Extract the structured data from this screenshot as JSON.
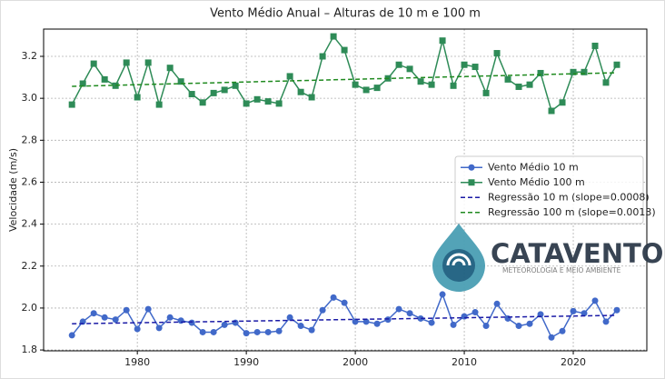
{
  "chart_data": {
    "type": "line",
    "title": "Vento Médio Anual – Alturas de 10 m e 100 m",
    "y_label": "Velocidade (m/s)",
    "xlim": [
      1971.4,
      2026.75
    ],
    "xticks": [
      1980,
      1990,
      2000,
      2010,
      2020
    ],
    "ylim": [
      1.796,
      3.33
    ],
    "yticks": [
      1.8,
      {
        "value": 2,
        "label": "2.0"
      },
      2.2,
      2.4,
      2.6,
      2.8,
      {
        "value": 3,
        "label": "3.0"
      },
      3.2
    ],
    "grid": true,
    "legend": "center right",
    "series": [
      {
        "name": "Vento Médio 10 m",
        "color": "#4169c9",
        "marker": "circle",
        "dashed": false,
        "x": [
          1974,
          1975,
          1976,
          1977,
          1978,
          1979,
          1980,
          1981,
          1982,
          1983,
          1984,
          1985,
          1986,
          1987,
          1988,
          1989,
          1990,
          1991,
          1992,
          1993,
          1994,
          1995,
          1996,
          1997,
          1998,
          1999,
          2000,
          2001,
          2002,
          2003,
          2004,
          2005,
          2006,
          2007,
          2008,
          2009,
          2010,
          2011,
          2012,
          2013,
          2014,
          2015,
          2016,
          2017,
          2018,
          2019,
          2020,
          2021,
          2022,
          2023,
          2024
        ],
        "values": [
          1.87,
          1.935,
          1.975,
          1.955,
          1.945,
          1.99,
          1.9,
          1.995,
          1.905,
          1.955,
          1.94,
          1.93,
          1.885,
          1.885,
          1.92,
          1.93,
          1.88,
          1.885,
          1.885,
          1.89,
          1.955,
          1.915,
          1.895,
          1.99,
          2.05,
          2.025,
          1.935,
          1.935,
          1.925,
          1.945,
          1.995,
          1.975,
          1.95,
          1.93,
          2.065,
          1.92,
          1.96,
          1.98,
          1.915,
          2.02,
          1.95,
          1.915,
          1.925,
          1.97,
          1.86,
          1.89,
          1.985,
          1.975,
          2.035,
          1.935,
          1.99
        ]
      },
      {
        "name": "Vento Médio 100 m",
        "color": "#2e8b57",
        "marker": "square",
        "dashed": false,
        "x": [
          1974,
          1975,
          1976,
          1977,
          1978,
          1979,
          1980,
          1981,
          1982,
          1983,
          1984,
          1985,
          1986,
          1987,
          1988,
          1989,
          1990,
          1991,
          1992,
          1993,
          1994,
          1995,
          1996,
          1997,
          1998,
          1999,
          2000,
          2001,
          2002,
          2003,
          2004,
          2005,
          2006,
          2007,
          2008,
          2009,
          2010,
          2011,
          2012,
          2013,
          2014,
          2015,
          2016,
          2017,
          2018,
          2019,
          2020,
          2021,
          2022,
          2023,
          2024
        ],
        "values": [
          2.97,
          3.07,
          3.165,
          3.09,
          3.06,
          3.17,
          3.005,
          3.17,
          2.97,
          3.145,
          3.08,
          3.02,
          2.98,
          3.025,
          3.04,
          3.06,
          2.975,
          2.995,
          2.985,
          2.975,
          3.105,
          3.03,
          3.005,
          3.2,
          3.295,
          3.23,
          3.065,
          3.04,
          3.05,
          3.095,
          3.16,
          3.14,
          3.08,
          3.065,
          3.275,
          3.06,
          3.16,
          3.15,
          3.025,
          3.215,
          3.09,
          3.055,
          3.065,
          3.12,
          2.94,
          2.98,
          3.125,
          3.125,
          3.25,
          3.075,
          3.16
        ]
      },
      {
        "name": "Regressão 10 m (slope=0.0008)",
        "color": "#1a1aa6",
        "marker": "none",
        "dashed": true,
        "x": [
          1974,
          2024
        ],
        "values": [
          1.925,
          1.965
        ]
      },
      {
        "name": "Regressão 100 m (slope=0.0013)",
        "color": "#1f8a1f",
        "marker": "none",
        "dashed": true,
        "x": [
          1974,
          2024
        ],
        "values": [
          3.057,
          3.122
        ]
      }
    ]
  },
  "watermark": {
    "name": "CATAVENTO",
    "tagline": "METEOROLOGIA E MEIO AMBIENTE"
  }
}
